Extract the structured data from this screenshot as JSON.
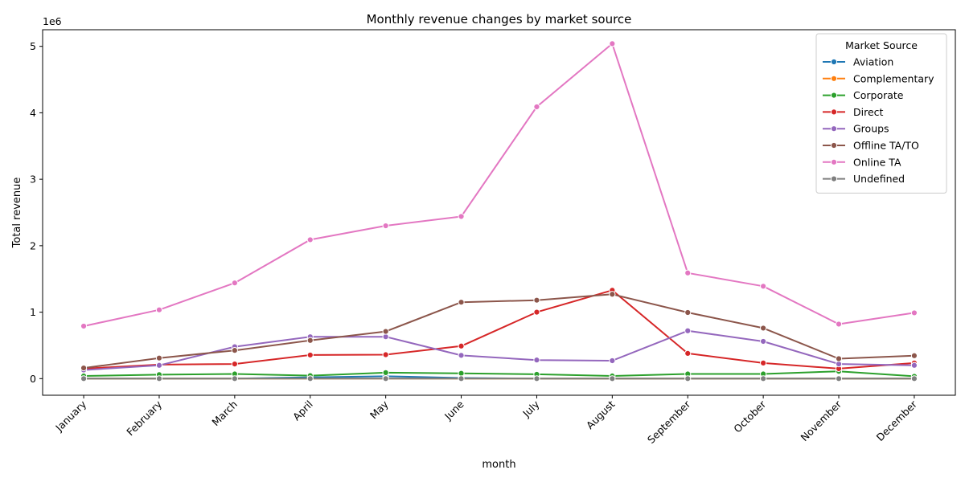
{
  "chart_data": {
    "type": "line",
    "title": "Monthly revenue changes by market source",
    "xlabel": "month",
    "ylabel": "Total revenue",
    "y_multiplier_label": "1e6",
    "ylim": [
      -250000,
      5250000
    ],
    "yticks": [
      0,
      1000000,
      2000000,
      3000000,
      4000000,
      5000000
    ],
    "ytick_labels": [
      "0",
      "1",
      "2",
      "3",
      "4",
      "5"
    ],
    "grid": false,
    "legend": {
      "title": "Market Source",
      "placement": "upper right"
    },
    "categories": [
      "January",
      "February",
      "March",
      "April",
      "May",
      "June",
      "July",
      "August",
      "September",
      "October",
      "November",
      "December"
    ],
    "series": [
      {
        "name": "Aviation",
        "color": "#1f77b4",
        "values": [
          0,
          0,
          0,
          20000,
          35000,
          10000,
          0,
          0,
          0,
          0,
          0,
          0
        ]
      },
      {
        "name": "Complementary",
        "color": "#ff7f0e",
        "values": [
          0,
          0,
          0,
          0,
          0,
          0,
          0,
          0,
          0,
          0,
          0,
          0
        ]
      },
      {
        "name": "Corporate",
        "color": "#2ca02c",
        "values": [
          40000,
          60000,
          70000,
          45000,
          90000,
          80000,
          65000,
          40000,
          70000,
          70000,
          110000,
          35000
        ]
      },
      {
        "name": "Direct",
        "color": "#d62728",
        "values": [
          150000,
          210000,
          220000,
          355000,
          360000,
          490000,
          1000000,
          1330000,
          380000,
          235000,
          150000,
          235000
        ]
      },
      {
        "name": "Groups",
        "color": "#9467bd",
        "values": [
          130000,
          200000,
          480000,
          630000,
          630000,
          350000,
          280000,
          270000,
          720000,
          560000,
          220000,
          200000
        ]
      },
      {
        "name": "Offline TA/TO",
        "color": "#8c564b",
        "values": [
          160000,
          310000,
          425000,
          575000,
          710000,
          1150000,
          1180000,
          1270000,
          995000,
          760000,
          300000,
          345000
        ]
      },
      {
        "name": "Online TA",
        "color": "#e377c2",
        "values": [
          790000,
          1035000,
          1440000,
          2090000,
          2300000,
          2440000,
          4090000,
          5040000,
          1590000,
          1390000,
          820000,
          990000
        ]
      },
      {
        "name": "Undefined",
        "color": "#7f7f7f",
        "values": [
          0,
          0,
          0,
          0,
          0,
          0,
          0,
          0,
          0,
          0,
          0,
          0
        ]
      }
    ]
  }
}
